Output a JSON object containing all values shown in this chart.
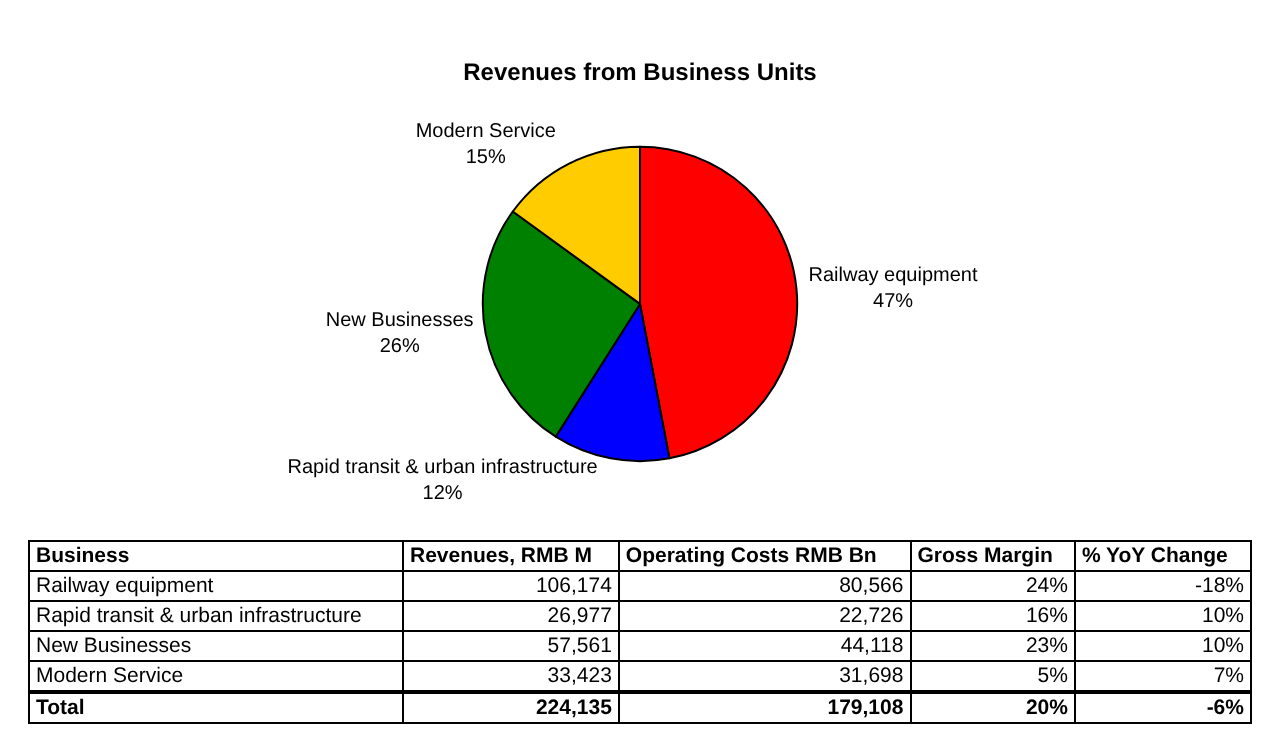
{
  "chart_data": [
    {
      "type": "pie",
      "title": "Revenues from Business Units",
      "categories": [
        "Railway equipment",
        "Rapid transit & urban infrastructure",
        "New Businesses",
        "Modern Service"
      ],
      "values": [
        47,
        12,
        26,
        15
      ],
      "value_labels": [
        "47%",
        "12%",
        "26%",
        "15%"
      ],
      "colors": [
        "#ff0000",
        "#0000ff",
        "#008000",
        "#ffcc00"
      ],
      "legend": false
    },
    {
      "type": "other",
      "categories": [
        "Business",
        "Revenues, RMB M",
        "Operating Costs RMB Bn",
        "Gross Margin",
        "% YoY Change"
      ],
      "y_categories": [
        "Railway equipment",
        "Rapid transit & urban infrastructure",
        "New Businesses",
        "Modern Service",
        "Total"
      ],
      "cell_labels": [
        [
          "106,174",
          "80,566",
          "24%",
          "-18%"
        ],
        [
          "26,977",
          "22,726",
          "16%",
          "10%"
        ],
        [
          "57,561",
          "44,118",
          "23%",
          "10%"
        ],
        [
          "33,423",
          "31,698",
          "5%",
          "7%"
        ],
        [
          "224,135",
          "179,108",
          "20%",
          "-6%"
        ]
      ]
    }
  ]
}
